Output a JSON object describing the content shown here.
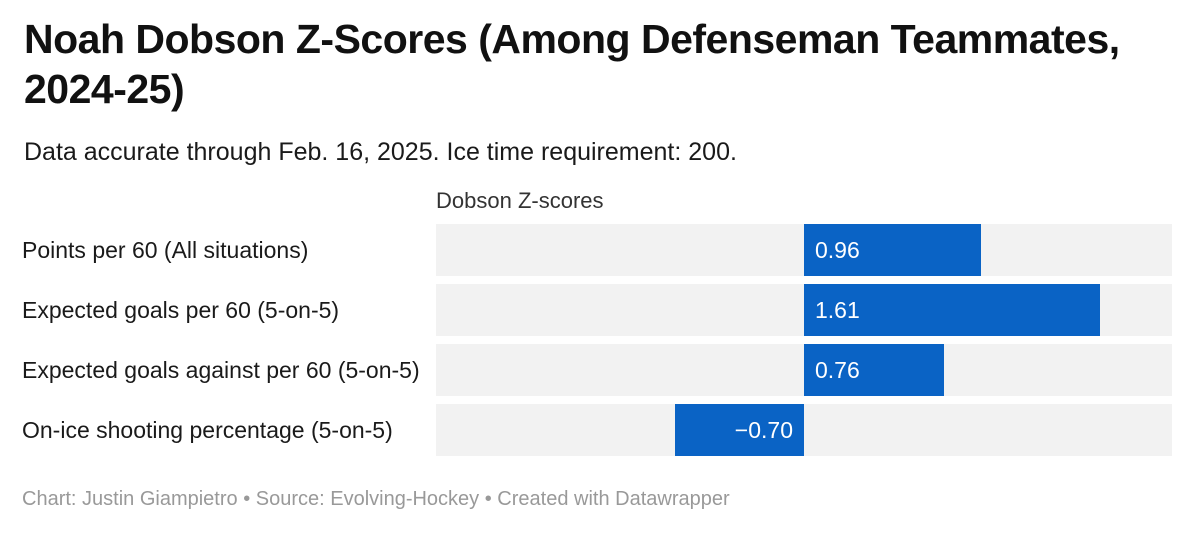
{
  "header": {
    "title": "Noah Dobson Z-Scores (Among Defenseman Teammates, 2024-25)",
    "subtitle": "Data accurate through Feb. 16, 2025. Ice time requirement: 200."
  },
  "chart_data": {
    "type": "bar",
    "orientation": "horizontal",
    "column_header": "Dobson Z-scores",
    "categories": [
      "Points per 60 (All situations)",
      "Expected goals per 60 (5-on-5)",
      "Expected goals against per 60 (5-on-5)",
      "On-ice shooting percentage (5-on-5)"
    ],
    "values": [
      0.96,
      1.61,
      0.76,
      -0.7
    ],
    "value_labels": [
      "0.96",
      "1.61",
      "0.76",
      "−0.70"
    ],
    "xlim": [
      -2,
      2
    ],
    "grid": false,
    "legend": "none",
    "bar_color": "#0a63c5",
    "track_color": "#f2f2f2",
    "value_label_color": "#ffffff"
  },
  "footer": {
    "byline": "Chart: Justin Giampietro • Source: Evolving-Hockey • Created with Datawrapper"
  }
}
